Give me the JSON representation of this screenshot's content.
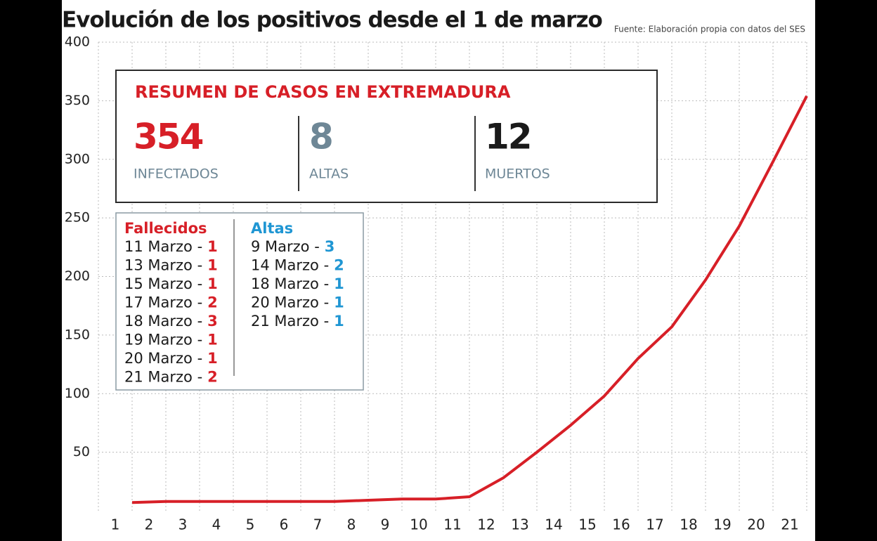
{
  "chart_data": {
    "type": "line",
    "title": "Evolución de los positivos desde el 1 de marzo",
    "source": "Fuente: Elaboración propia con datos del SES",
    "categories": [
      "1",
      "2",
      "3",
      "4",
      "5",
      "6",
      "7",
      "8",
      "9",
      "10",
      "11",
      "12",
      "13",
      "14",
      "15",
      "16",
      "17",
      "18",
      "19",
      "20",
      "21"
    ],
    "values": [
      7,
      8,
      8,
      8,
      8,
      8,
      8,
      9,
      10,
      10,
      12,
      28,
      50,
      73,
      98,
      130,
      157,
      197,
      243,
      298,
      354
    ],
    "color": "#d71f27",
    "ylim": [
      0,
      400
    ],
    "yticks": [
      50,
      100,
      150,
      200,
      250,
      300,
      350,
      400
    ],
    "grid": true
  },
  "summary": {
    "title": "RESUMEN DE CASOS EN EXTREMADURA",
    "stats": [
      {
        "value": 354,
        "label": "INFECTADOS",
        "color": "#d71f27"
      },
      {
        "value": 8,
        "label": "ALTAS",
        "color": "#6e8796"
      },
      {
        "value": 12,
        "label": "MUERTOS",
        "color": "#1a1a1a"
      }
    ]
  },
  "lists": [
    {
      "title": "Fallecidos",
      "color": "#d71f27",
      "items": [
        {
          "date": "11 Marzo -",
          "count": 1
        },
        {
          "date": "13 Marzo -",
          "count": 1
        },
        {
          "date": "15 Marzo -",
          "count": 1
        },
        {
          "date": "17 Marzo -",
          "count": 2
        },
        {
          "date": "18 Marzo -",
          "count": 3
        },
        {
          "date": "19 Marzo -",
          "count": 1
        },
        {
          "date": "20 Marzo -",
          "count": 1
        },
        {
          "date": "21 Marzo -",
          "count": 2
        }
      ]
    },
    {
      "title": "Altas",
      "color": "#1f96d3",
      "items": [
        {
          "date": "9 Marzo -",
          "count": 3
        },
        {
          "date": "14 Marzo -",
          "count": 2
        },
        {
          "date": "18 Marzo -",
          "count": 1
        },
        {
          "date": "20 Marzo -",
          "count": 1
        },
        {
          "date": "21 Marzo -",
          "count": 1
        }
      ]
    }
  ]
}
